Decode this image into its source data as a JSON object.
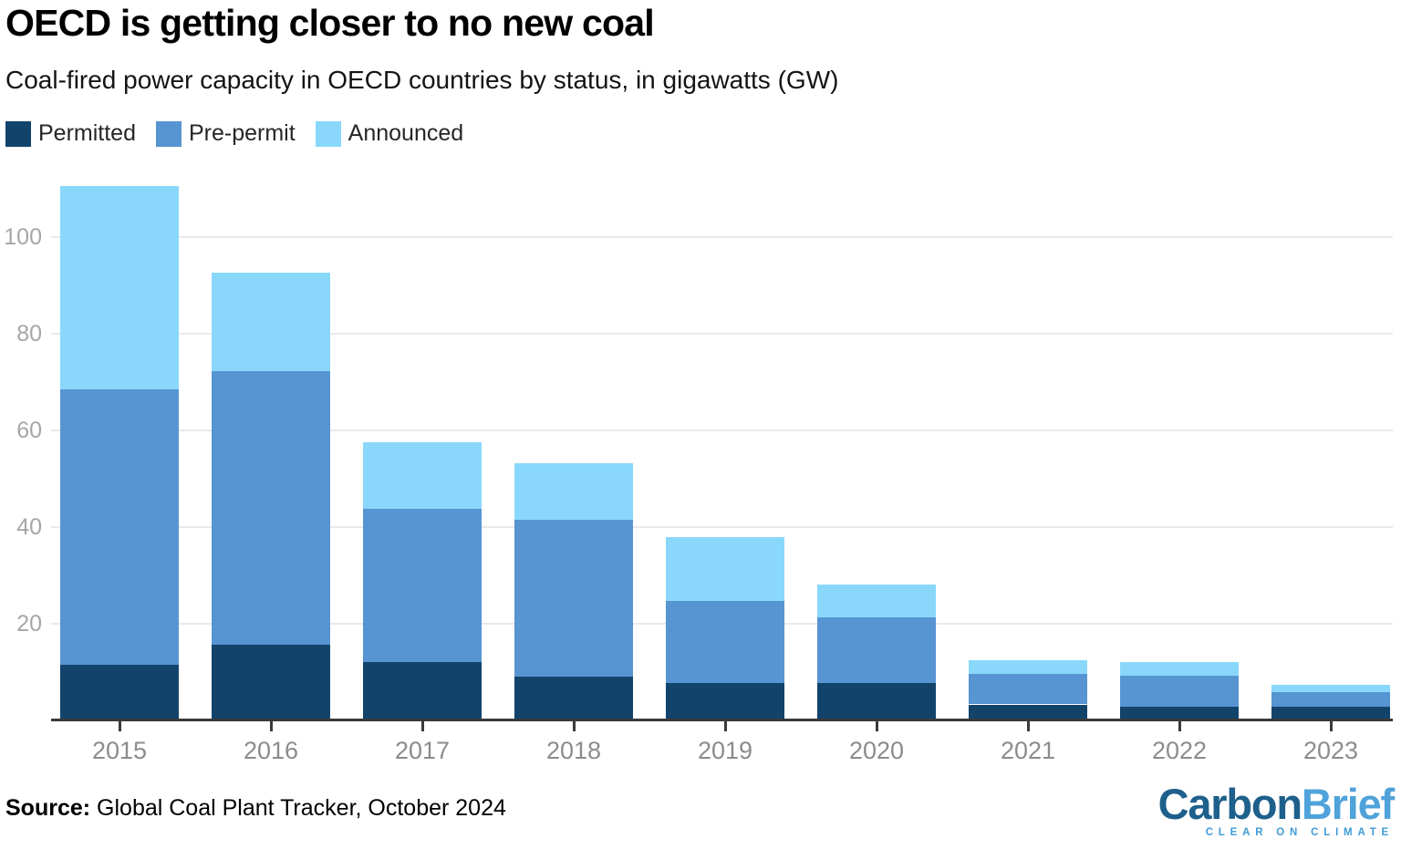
{
  "title": "OECD is getting closer to no new coal",
  "subtitle": "Coal-fired power capacity in OECD countries by status, in gigawatts (GW)",
  "chart_data": {
    "type": "bar",
    "stacked": true,
    "title": "OECD is getting closer to no new coal",
    "subtitle": "Coal-fired power capacity in OECD countries by status, in gigawatts (GW)",
    "categories": [
      "2015",
      "2016",
      "2017",
      "2018",
      "2019",
      "2020",
      "2021",
      "2022",
      "2023"
    ],
    "series": [
      {
        "name": "Permitted",
        "color": "#12436B",
        "values": [
          11.6,
          15.6,
          12.1,
          9.1,
          7.7,
          7.7,
          3.3,
          2.8,
          2.9
        ]
      },
      {
        "name": "Pre-permit",
        "color": "#5794D2",
        "values": [
          56.8,
          56.7,
          31.6,
          32.4,
          17.1,
          13.6,
          6.3,
          6.4,
          2.9
        ]
      },
      {
        "name": "Announced",
        "color": "#89D8FC",
        "values": [
          42.2,
          20.3,
          13.9,
          11.8,
          13.1,
          6.8,
          2.8,
          2.9,
          1.6
        ]
      }
    ],
    "xlabel": "",
    "ylabel": "",
    "yticks": [
      20,
      40,
      60,
      80,
      100
    ],
    "ylim": [
      0,
      111
    ],
    "grid": true,
    "legend_position": "top-left"
  },
  "footer": {
    "source_label": "Source:",
    "source_text": " Global Coal Plant Tracker, October 2024"
  },
  "logo": {
    "part1": "Carbon",
    "part2": "Brief",
    "part1_color": "#1E608C",
    "part2_color": "#4FA3DA",
    "tagline": "CLEAR ON CLIMATE"
  }
}
